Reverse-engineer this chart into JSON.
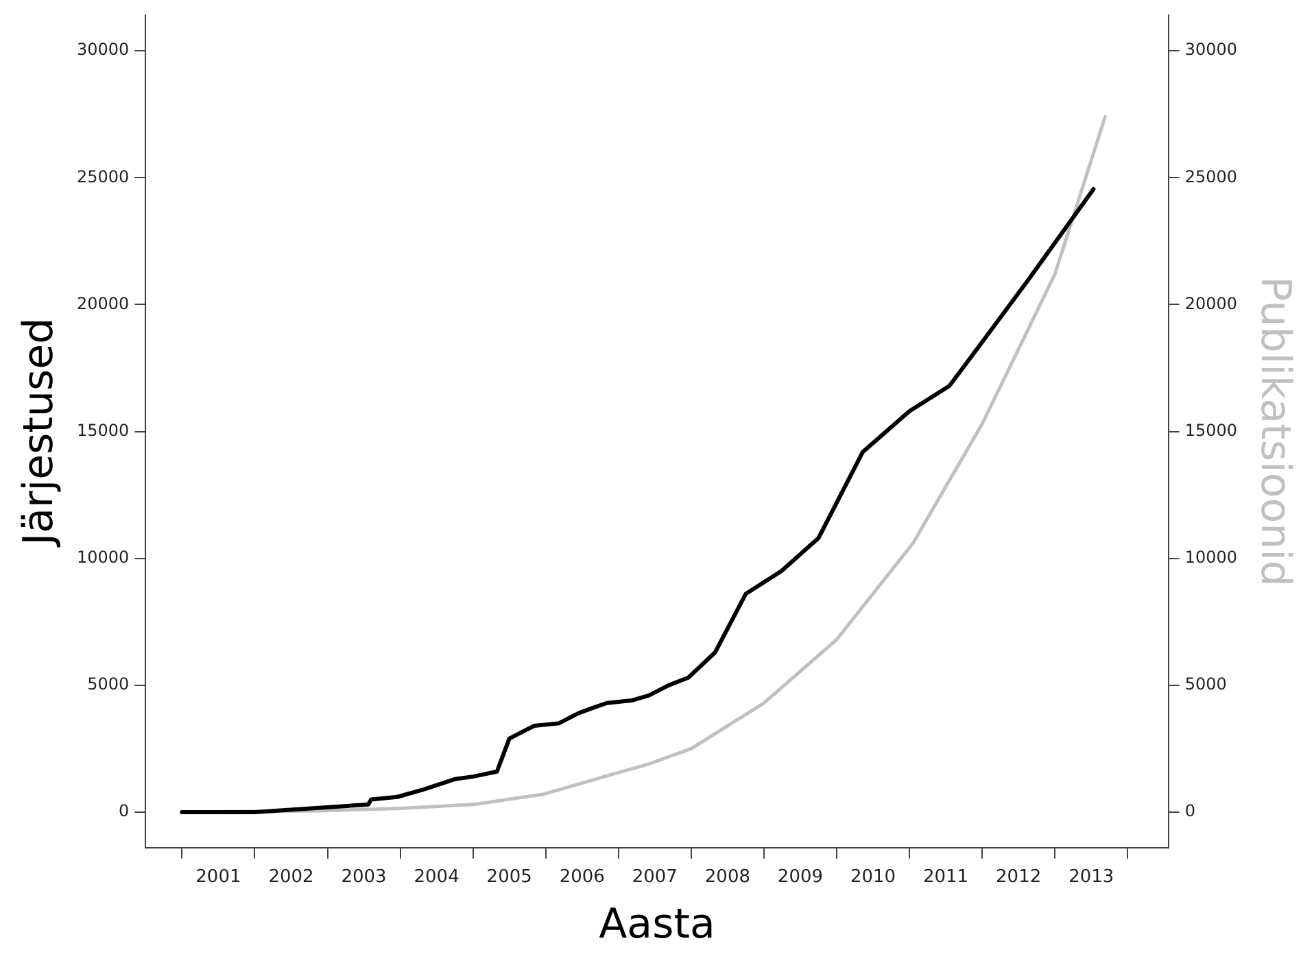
{
  "chart_data": {
    "type": "line",
    "xlabel": "Aasta",
    "ylabel": "Järjestused",
    "y2label": "Publikatsioonid",
    "xlim": [
      2000.5,
      2014.56
    ],
    "xticks": [
      {
        "value": 2001,
        "label": null
      },
      {
        "value": 2001.5,
        "label": "2001"
      },
      {
        "value": 2002,
        "label": null
      },
      {
        "value": 2002.5,
        "label": "2002"
      },
      {
        "value": 2003,
        "label": null
      },
      {
        "value": 2003.5,
        "label": "2003"
      },
      {
        "value": 2004,
        "label": null
      },
      {
        "value": 2004.5,
        "label": "2004"
      },
      {
        "value": 2005,
        "label": null
      },
      {
        "value": 2005.5,
        "label": "2005"
      },
      {
        "value": 2006,
        "label": null
      },
      {
        "value": 2006.5,
        "label": "2006"
      },
      {
        "value": 2007,
        "label": null
      },
      {
        "value": 2007.5,
        "label": "2007"
      },
      {
        "value": 2008,
        "label": null
      },
      {
        "value": 2008.5,
        "label": "2008"
      },
      {
        "value": 2009,
        "label": null
      },
      {
        "value": 2009.5,
        "label": "2009"
      },
      {
        "value": 2010,
        "label": null
      },
      {
        "value": 2010.5,
        "label": "2010"
      },
      {
        "value": 2011,
        "label": null
      },
      {
        "value": 2011.5,
        "label": "2011"
      },
      {
        "value": 2012,
        "label": null
      },
      {
        "value": 2012.5,
        "label": "2012"
      },
      {
        "value": 2013,
        "label": null
      },
      {
        "value": 2013.5,
        "label": "2013"
      },
      {
        "value": 2014,
        "label": null
      }
    ],
    "ylim": [
      -1400,
      31400
    ],
    "yticks": [
      0,
      5000,
      10000,
      15000,
      20000,
      25000,
      30000
    ],
    "y2lim": [
      -1400,
      31400
    ],
    "y2ticks": [
      0,
      5000,
      10000,
      15000,
      20000,
      25000,
      30000
    ],
    "grid": false,
    "legend": false,
    "marker": "none",
    "line_style": "solid",
    "series": [
      {
        "color": "#000000",
        "x": [
          2001.0,
          2002.0,
          2003.05,
          2003.56,
          2003.6,
          2003.96,
          2004.33,
          2004.75,
          2005.0,
          2005.33,
          2005.5,
          2005.84,
          2006.18,
          2006.45,
          2006.64,
          2006.84,
          2007.18,
          2007.42,
          2007.69,
          2007.96,
          2008.33,
          2008.75,
          2009.24,
          2009.75,
          2010.36,
          2011.0,
          2011.55,
          2012.02,
          2012.64,
          2013.53
        ],
        "values": [
          0,
          0,
          200,
          300,
          500,
          600,
          900,
          1300,
          1400,
          1600,
          2900,
          3400,
          3500,
          3900,
          4100,
          4300,
          4400,
          4600,
          5000,
          5300,
          6300,
          8600,
          9500,
          10800,
          14200,
          15800,
          16800,
          18600,
          21000,
          24550
        ]
      },
      {
        "color": "#c0c0c0",
        "axis": "y2",
        "x": [
          2001.0,
          2002.9,
          2004.0,
          2005.0,
          2005.96,
          2006.93,
          2007.42,
          2008.0,
          2009.0,
          2010.0,
          2011.05,
          2012.0,
          2012.56,
          2013.0,
          2013.69
        ],
        "values": [
          0,
          50,
          150,
          300,
          700,
          1500,
          1900,
          2500,
          4300,
          6800,
          10600,
          15300,
          18600,
          21200,
          27400
        ]
      }
    ]
  }
}
